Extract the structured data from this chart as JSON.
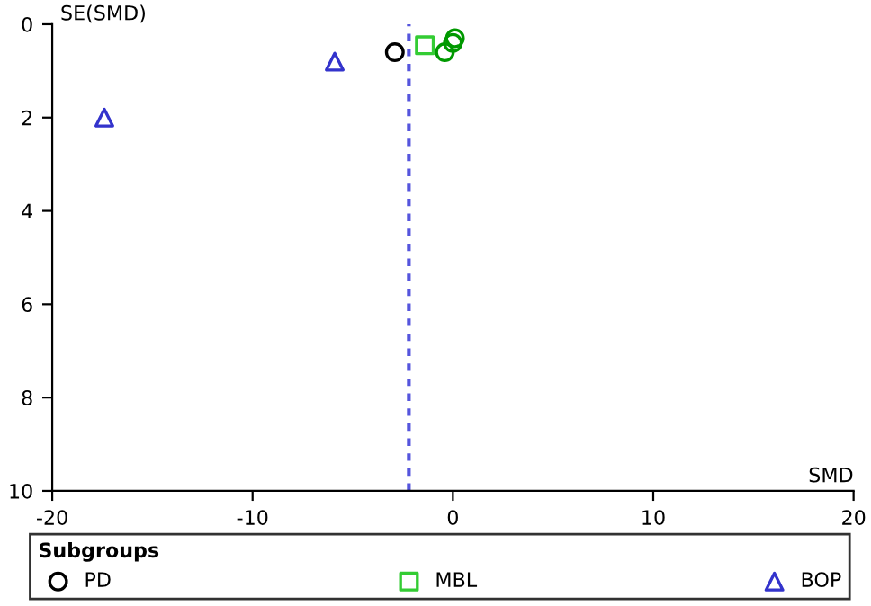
{
  "chart_data": {
    "type": "scatter",
    "xlabel": "SMD",
    "ylabel": "SE(SMD)",
    "xlim": [
      -20,
      20
    ],
    "xticks": [
      -20,
      -10,
      0,
      10,
      20
    ],
    "ylim": [
      10,
      0
    ],
    "yticks": [
      0,
      2,
      4,
      6,
      8,
      10
    ],
    "grid": false,
    "legend": "bottom",
    "legend_title": "Subgroups",
    "series": [
      {
        "name": "PD",
        "color": "#000000",
        "marker": "circle",
        "x": [
          -2.9
        ],
        "values": [
          0.6
        ]
      },
      {
        "name": "MBL",
        "color": "#33cc33",
        "marker": "square",
        "x": [
          -1.4
        ],
        "values": [
          0.45
        ]
      },
      {
        "name": "BOP",
        "color": "#3333cc",
        "marker": "triangle",
        "x": [
          -5.9,
          -17.4
        ],
        "values": [
          0.8,
          2.0
        ]
      },
      {
        "color": "#009900",
        "marker": "circle",
        "x": [
          -0.4,
          0.0,
          0.1
        ],
        "values": [
          0.6,
          0.4,
          0.3
        ]
      }
    ],
    "ref_lines": [
      {
        "axis": "x",
        "value": -2.2,
        "color": "#5555dd",
        "line_style": "dashed"
      }
    ]
  }
}
